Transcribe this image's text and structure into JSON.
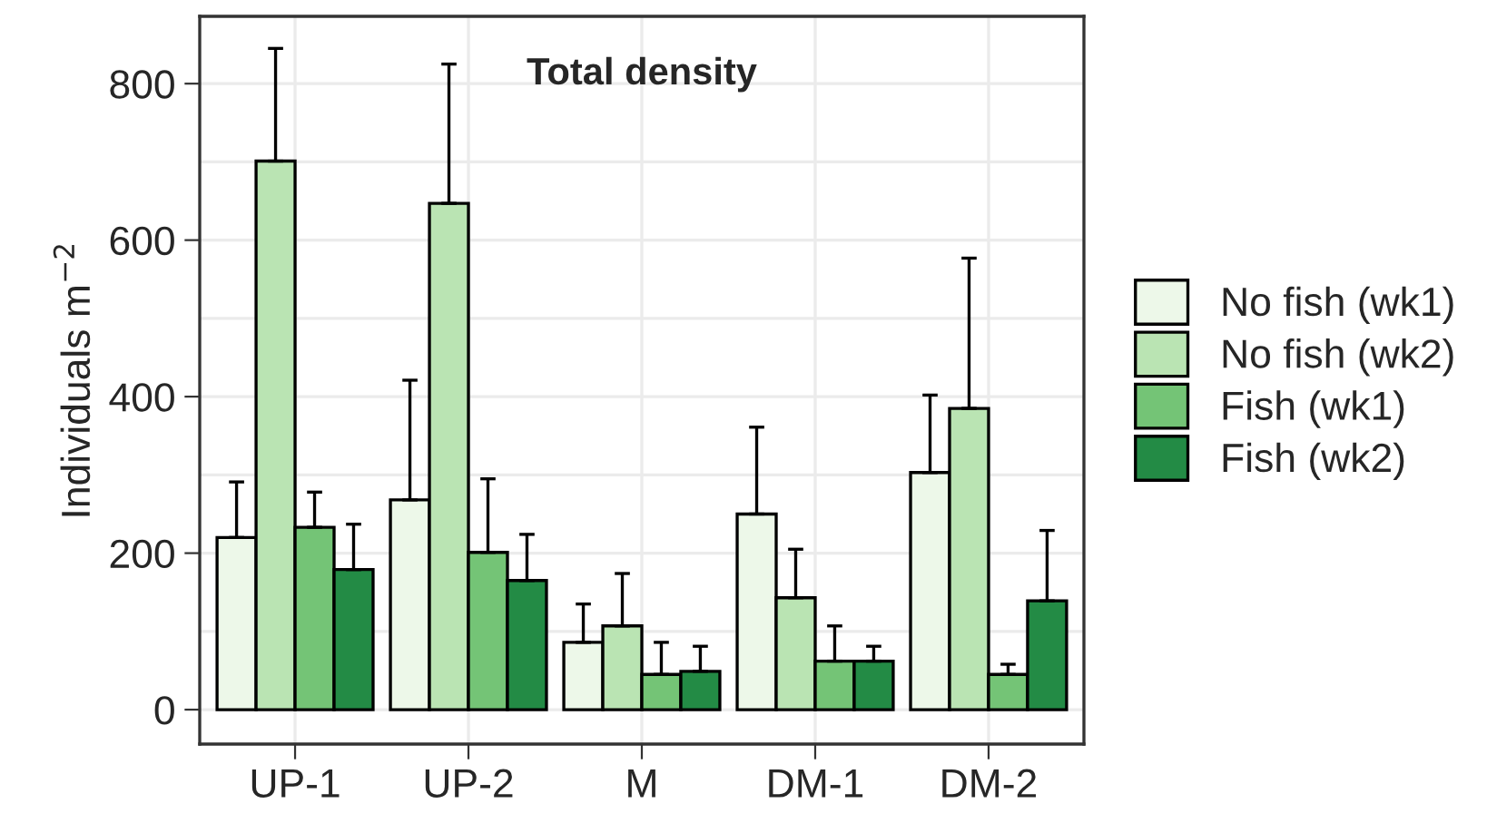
{
  "chart_data": {
    "type": "bar",
    "title": "Total density",
    "ylabel": "Individuals m$^{−2}$",
    "categories": [
      "UP-1",
      "UP-2",
      "M",
      "DM-1",
      "DM-2"
    ],
    "series": [
      {
        "name": "No fish (wk1)",
        "color": "#edf8e9",
        "values": [
          220,
          268,
          86,
          250,
          303
        ],
        "errors": [
          [
            220,
            291
          ],
          [
            268,
            421
          ],
          [
            86,
            135
          ],
          [
            250,
            361
          ],
          [
            303,
            402
          ]
        ]
      },
      {
        "name": "No fish (wk2)",
        "color": "#bae4b3",
        "values": [
          701,
          647,
          107,
          143,
          385
        ],
        "errors": [
          [
            701,
            845
          ],
          [
            647,
            825
          ],
          [
            107,
            174
          ],
          [
            143,
            205
          ],
          [
            385,
            577
          ]
        ]
      },
      {
        "name": "Fish (wk1)",
        "color": "#74c476",
        "values": [
          233,
          201,
          45,
          62,
          45
        ],
        "errors": [
          [
            233,
            278
          ],
          [
            201,
            295
          ],
          [
            45,
            86
          ],
          [
            62,
            107
          ],
          [
            45,
            58
          ]
        ]
      },
      {
        "name": "Fish (wk2)",
        "color": "#238b45",
        "values": [
          179,
          165,
          49,
          62,
          139
        ],
        "errors": [
          [
            179,
            237
          ],
          [
            165,
            224
          ],
          [
            49,
            81
          ],
          [
            62,
            81
          ],
          [
            139,
            229
          ]
        ]
      }
    ],
    "ylim": [
      -44,
      886
    ],
    "yticks": [
      0,
      {
        "value": 100,
        "label": null
      },
      200,
      {
        "value": 300,
        "label": null
      },
      400,
      {
        "value": 500,
        "label": null
      },
      600,
      {
        "value": 700,
        "label": null
      },
      800
    ],
    "grid": true,
    "legend": "right"
  }
}
